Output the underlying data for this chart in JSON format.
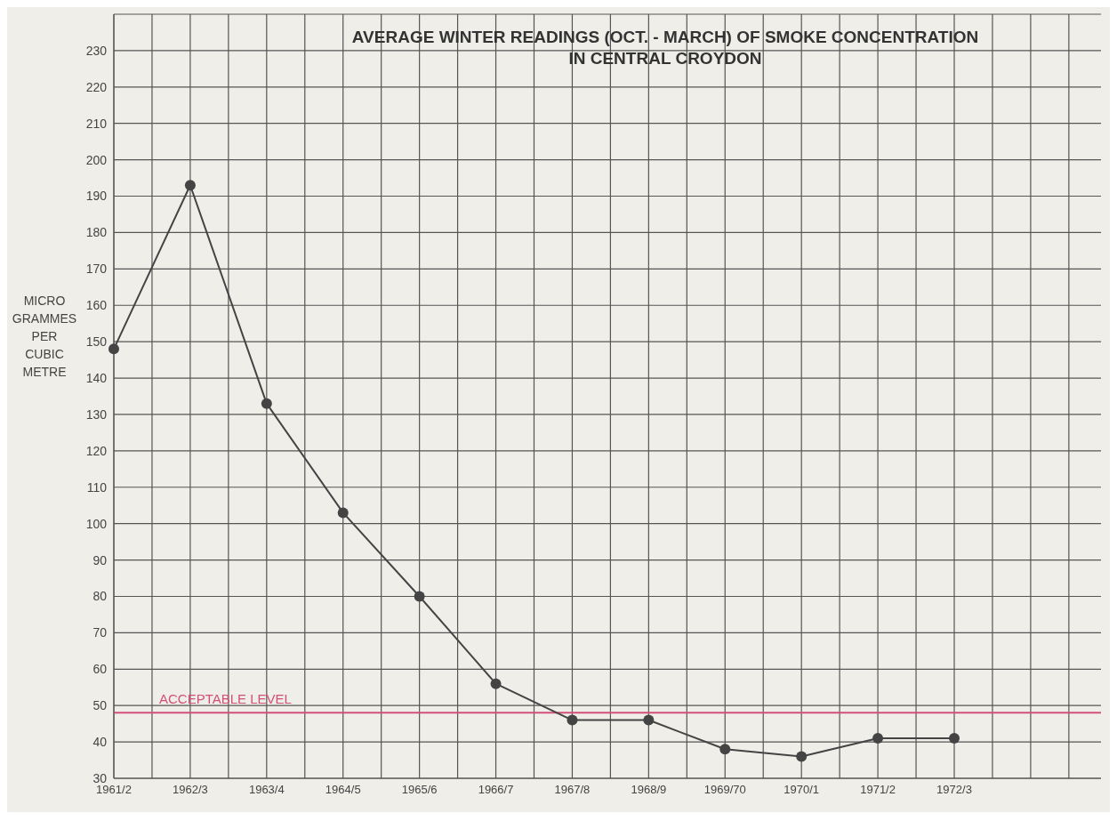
{
  "chart_data": {
    "type": "line",
    "title": "AVERAGE WINTER READINGS (OCT. - MARCH) OF SMOKE CONCENTRATION\nIN CENTRAL CROYDON",
    "ylabel": "MICRO GRAMMES PER CUBIC METRE",
    "categories": [
      "1961/2",
      "1962/3",
      "1963/4",
      "1964/5",
      "1965/6",
      "1966/7",
      "1967/8",
      "1968/9",
      "1969/70",
      "1970/1",
      "1971/2",
      "1972/3"
    ],
    "series": [
      {
        "color": "#444444",
        "values": [
          148,
          193,
          133,
          103,
          80,
          56,
          46,
          46,
          38,
          36,
          41,
          41
        ]
      }
    ],
    "ylim": [
      30,
      240
    ],
    "yticks": [
      30,
      40,
      50,
      60,
      70,
      80,
      90,
      100,
      110,
      120,
      130,
      140,
      150,
      160,
      170,
      180,
      190,
      200,
      210,
      220,
      230
    ],
    "ref_lines": [
      {
        "axis": "y",
        "value": 48,
        "label": "ACCEPTABLE LEVEL",
        "color": "#d2507a"
      }
    ],
    "grid": true,
    "marker": "circle",
    "line_style": "solid"
  }
}
